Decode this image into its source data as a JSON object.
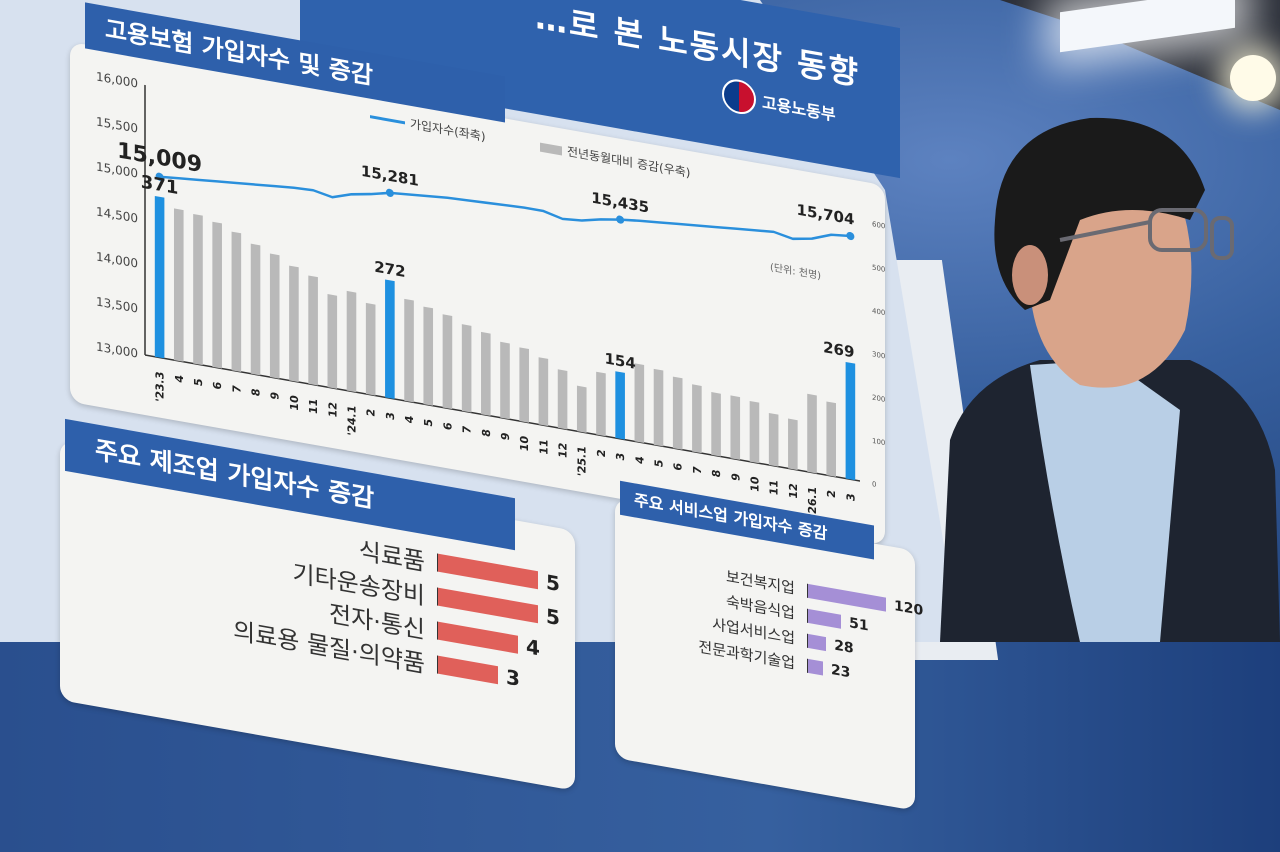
{
  "header": {
    "title": "노동시장 동향",
    "title_partial": "…로 본 노동시장 동향",
    "ministry": "고용노동부"
  },
  "main_chart": {
    "title": "고용보험 가입자수 및 증감",
    "chart_data": {
      "type": "bar+line",
      "title": "고용보험 가입자수 및 증감",
      "unit": "(단위: 천명)",
      "legend": {
        "line": "가입자수(좌축)",
        "bar": "전년동월대비 증감(우축)",
        "placement": "top-center"
      },
      "left_axis": {
        "ticks": [
          "13,000",
          "13,500",
          "14,000",
          "14,500",
          "15,000",
          "15,500",
          "16,000"
        ],
        "range": [
          13000,
          16000
        ]
      },
      "right_axis": {
        "ticks": [
          "0",
          "100",
          "200",
          "300",
          "400",
          "500",
          "600"
        ],
        "range": [
          0,
          600
        ]
      },
      "categories": [
        "'23.3",
        "4",
        "5",
        "6",
        "7",
        "8",
        "9",
        "10",
        "11",
        "12",
        "'24.1",
        "2",
        "3",
        "4",
        "5",
        "6",
        "7",
        "8",
        "9",
        "10",
        "11",
        "12",
        "'25.1",
        "2",
        "3",
        "4",
        "5",
        "6",
        "7",
        "8",
        "9",
        "10",
        "11",
        "12",
        "'26.1",
        "2",
        "3"
      ],
      "bar_values": [
        371,
        350,
        345,
        335,
        320,
        300,
        285,
        265,
        250,
        215,
        230,
        210,
        272,
        235,
        225,
        215,
        200,
        190,
        175,
        170,
        155,
        135,
        105,
        145,
        154,
        180,
        175,
        165,
        155,
        145,
        145,
        140,
        120,
        115,
        180,
        170,
        269
      ],
      "highlight_indices": [
        0,
        12,
        24,
        36
      ],
      "highlight_color": "#1e90e0",
      "bar_color": "#b9b9b9",
      "line_color": "#2a8fdc",
      "line_values": [
        15009,
        15030,
        15050,
        15070,
        15090,
        15110,
        15130,
        15150,
        15160,
        15120,
        15190,
        15230,
        15281,
        15300,
        15320,
        15340,
        15350,
        15360,
        15370,
        15380,
        15380,
        15330,
        15350,
        15400,
        15435,
        15460,
        15480,
        15500,
        15520,
        15540,
        15560,
        15580,
        15600,
        15560,
        15600,
        15680,
        15704
      ],
      "line_labels": [
        {
          "index": 0,
          "text": "15,009"
        },
        {
          "index": 12,
          "text": "15,281"
        },
        {
          "index": 24,
          "text": "15,435"
        },
        {
          "index": 36,
          "text": "15,704"
        }
      ],
      "bar_labels": [
        {
          "index": 0,
          "text": "371"
        },
        {
          "index": 12,
          "text": "272"
        },
        {
          "index": 24,
          "text": "154"
        },
        {
          "index": 36,
          "text": "269"
        }
      ]
    }
  },
  "manufacturing": {
    "title": "주요 제조업 가입자수 증감",
    "color": "#e0605a",
    "items": [
      {
        "label": "식료품",
        "value": 5
      },
      {
        "label": "기타운송장비",
        "value": 5
      },
      {
        "label": "전자·통신",
        "value": 4
      },
      {
        "label": "의료용 물질·의약품",
        "value": 3
      }
    ]
  },
  "services": {
    "title": "주요 서비스업 가입자수 증감",
    "color": "#a58fd6",
    "items": [
      {
        "label": "보건복지업",
        "value": 120
      },
      {
        "label": "숙박음식업",
        "value": 51
      },
      {
        "label": "사업서비스업",
        "value": 28
      },
      {
        "label": "전문과학기술업",
        "value": 23
      }
    ]
  }
}
